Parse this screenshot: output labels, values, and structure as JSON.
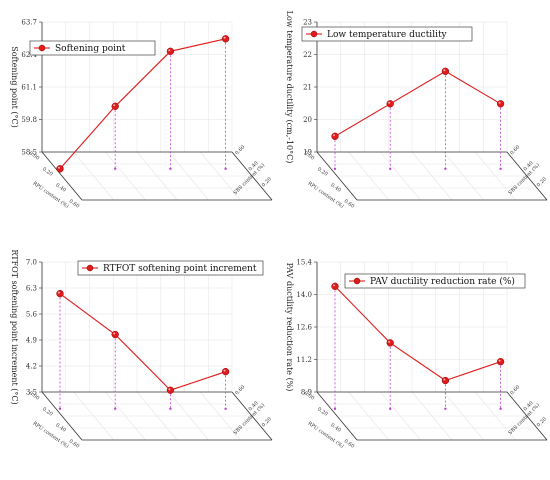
{
  "chart_data": [
    {
      "type": "line",
      "series": [
        {
          "name": "Softening point",
          "values": [
            58.5,
            61.0,
            63.2,
            63.7
          ]
        }
      ],
      "ylabel": "Softening point (°C)",
      "yticks": [
        "58.5",
        "59.8",
        "61.1",
        "62.4",
        "63.7"
      ],
      "ylim": [
        58.5,
        63.7
      ],
      "depth_axis_label": "SBS content (%)",
      "depth_ticks": [
        "0.00",
        "0.20",
        "0.40",
        "0.60"
      ],
      "x_axis_label": "RPU content (%)",
      "x_ticks": [
        "0.00",
        "0.20",
        "0.40",
        "0.60"
      ],
      "legend_position": "top-left",
      "color": "#e11b1b"
    },
    {
      "type": "line",
      "series": [
        {
          "name": "Low temperature ductility",
          "values": [
            20.0,
            21.0,
            22.0,
            21.0
          ]
        }
      ],
      "ylabel": "Low temperature ductility (cm,-10°C)",
      "yticks": [
        "19",
        "20",
        "21",
        "22",
        "23"
      ],
      "ylim": [
        19,
        23
      ],
      "depth_axis_label": "SBS content (%)",
      "depth_ticks": [
        "0.00",
        "0.20",
        "0.40",
        "0.60"
      ],
      "x_axis_label": "RPU content (%)",
      "x_ticks": [
        "0.00",
        "0.20",
        "0.40",
        "0.60"
      ],
      "legend_position": "top",
      "color": "#e11b1b"
    },
    {
      "type": "line",
      "series": [
        {
          "name": "RTFOT softening point increment",
          "values": [
            6.6,
            5.5,
            4.0,
            4.5
          ]
        }
      ],
      "ylabel": "RTFOT softening point increment (°C)",
      "yticks": [
        "3.5",
        "4.2",
        "4.9",
        "5.6",
        "6.3",
        "7.0"
      ],
      "ylim": [
        3.5,
        7.0
      ],
      "depth_axis_label": "SBS content (%)",
      "depth_ticks": [
        "0.00",
        "0.20",
        "0.40",
        "0.60"
      ],
      "x_axis_label": "RPU content (%)",
      "x_ticks": [
        "0.00",
        "0.20",
        "0.40",
        "0.60"
      ],
      "legend_position": "top-right",
      "color": "#e11b1b"
    },
    {
      "type": "line",
      "series": [
        {
          "name": "PAV ductility reduction rate (%)",
          "values": [
            15.0,
            12.0,
            10.0,
            11.0
          ]
        }
      ],
      "ylabel": "PAV ductility reduction rate (%)",
      "yticks": [
        "8.9",
        "11.2",
        "12.6",
        "14.0",
        "15.4"
      ],
      "ylim": [
        8.5,
        15.4
      ],
      "depth_axis_label": "SBS content (%)",
      "depth_ticks": [
        "0.00",
        "0.20",
        "0.40",
        "0.60"
      ],
      "x_axis_label": "RPU content (%)",
      "x_ticks": [
        "0.00",
        "0.20",
        "0.40",
        "0.60"
      ],
      "legend_position": "top-right",
      "color": "#e11b1b"
    }
  ]
}
